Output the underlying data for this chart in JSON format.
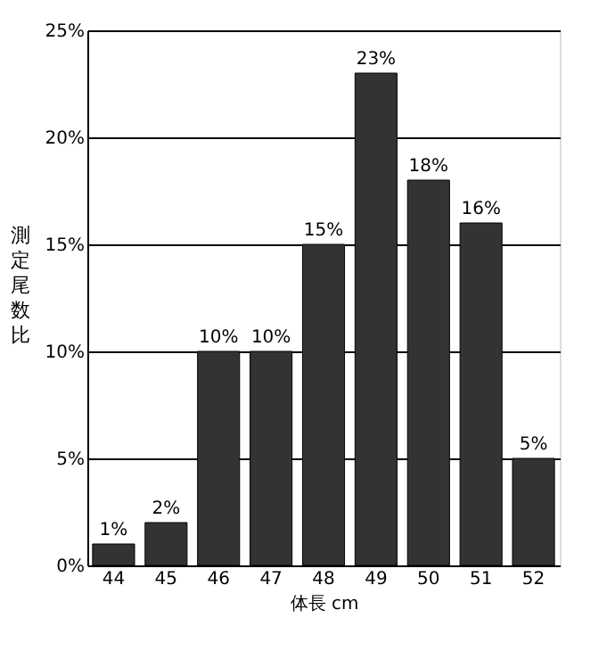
{
  "chart_data": {
    "type": "bar",
    "xlabel": "体長 cm",
    "ylabel": "測定尾数比",
    "categories": [
      "44",
      "45",
      "46",
      "47",
      "48",
      "49",
      "50",
      "51",
      "52"
    ],
    "values": [
      1,
      2,
      10,
      10,
      15,
      23,
      18,
      16,
      5
    ],
    "value_labels": [
      "1%",
      "2%",
      "10%",
      "10%",
      "15%",
      "23%",
      "18%",
      "16%",
      "5%"
    ],
    "color": "#333333",
    "ylim": [
      0,
      25
    ],
    "yticks": [
      {
        "value": 0,
        "label": "0%"
      },
      {
        "value": 5,
        "label": "5%"
      },
      {
        "value": 10,
        "label": "10%"
      },
      {
        "value": 15,
        "label": "15%"
      },
      {
        "value": 20,
        "label": "20%"
      },
      {
        "value": 25,
        "label": "25%"
      }
    ],
    "grid": "y"
  }
}
